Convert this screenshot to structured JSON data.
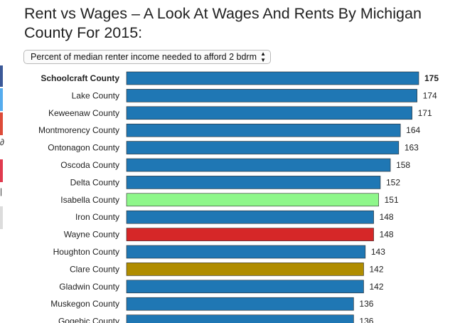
{
  "page": {
    "title": "Rent vs Wages – A Look At Wages And Rents By Michigan County For 2015:"
  },
  "selector": {
    "value": "Percent of median renter income needed to afford 2 bdrm",
    "arrows_icon": "up-down-arrows-icon"
  },
  "colors": {
    "default_bar": "#1f77b4",
    "highlight_green": "#8ef78a",
    "highlight_red": "#d62728",
    "highlight_gold": "#b08d00"
  },
  "chart_data": {
    "type": "bar",
    "orientation": "horizontal",
    "categories": [
      "Schoolcraft County",
      "Lake County",
      "Keweenaw County",
      "Montmorency County",
      "Ontonagon County",
      "Oscoda County",
      "Delta County",
      "Isabella County",
      "Iron County",
      "Wayne County",
      "Houghton County",
      "Clare County",
      "Gladwin County",
      "Muskegon County",
      "Gogebic County"
    ],
    "values": [
      175,
      174,
      171,
      164,
      163,
      158,
      152,
      151,
      148,
      148,
      143,
      142,
      142,
      136,
      136
    ],
    "bar_colors": [
      "#1f77b4",
      "#1f77b4",
      "#1f77b4",
      "#1f77b4",
      "#1f77b4",
      "#1f77b4",
      "#1f77b4",
      "#8ef78a",
      "#1f77b4",
      "#d62728",
      "#1f77b4",
      "#b08d00",
      "#1f77b4",
      "#1f77b4",
      "#1f77b4"
    ],
    "bold_category": "Schoolcraft County",
    "xlim": [
      0,
      175
    ]
  }
}
